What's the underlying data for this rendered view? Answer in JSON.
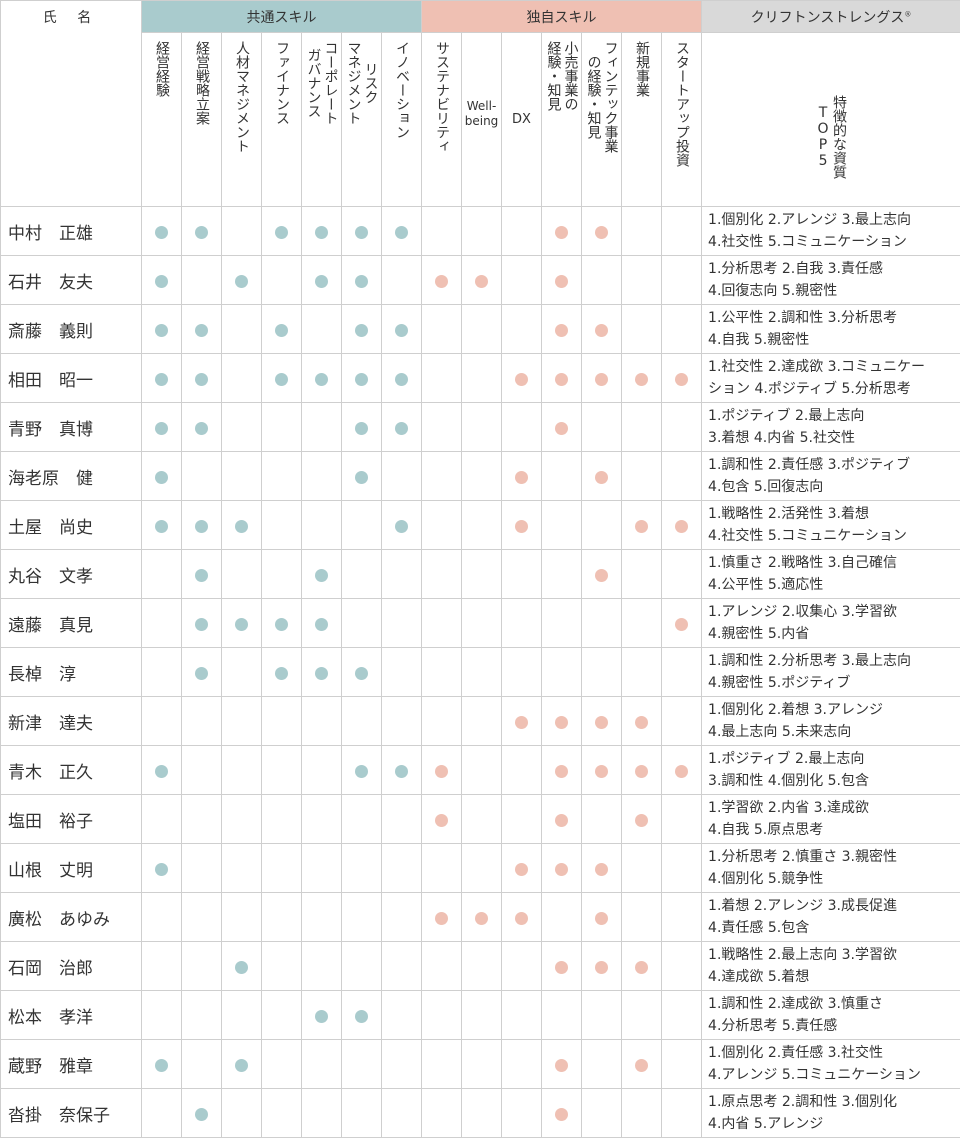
{
  "header": {
    "name_label": "氏 名",
    "common_label": "共通スキル",
    "unique_label": "独自スキル",
    "clifton_label": "クリフトンストレングス",
    "clifton_mark": "®",
    "top5_label": "特徴的な資質TOP5"
  },
  "colors": {
    "common": "#a9cbcd",
    "unique": "#efc0b3",
    "clifton": "#d9d9d9"
  },
  "common_skills": [
    "経営経験",
    "経営戦略立案",
    "人材マネジメント",
    "ファイナンス",
    "コーポレート\nガバナンス",
    "リスク\nマネジメント",
    "イノベーション"
  ],
  "unique_skills": [
    "サステナビリティ",
    "Well-\nbeing",
    "DX",
    "小売事業の\n経験・知見",
    "フィンテック事業\nの経験・知見",
    "新規事業",
    "スタートアップ投資"
  ],
  "members": [
    {
      "name": "中村　正雄",
      "common": [
        1,
        1,
        0,
        1,
        1,
        1,
        1
      ],
      "unique": [
        0,
        0,
        0,
        1,
        1,
        0,
        0
      ],
      "top5": "1.個別化 2.アレンジ 3.最上志向\n4.社交性 5.コミュニケーション"
    },
    {
      "name": "石井　友夫",
      "common": [
        1,
        0,
        1,
        0,
        1,
        1,
        0
      ],
      "unique": [
        1,
        1,
        0,
        1,
        0,
        0,
        0
      ],
      "top5": "1.分析思考 2.自我 3.責任感\n4.回復志向 5.親密性"
    },
    {
      "name": "斎藤　義則",
      "common": [
        1,
        1,
        0,
        1,
        0,
        1,
        1
      ],
      "unique": [
        0,
        0,
        0,
        1,
        1,
        0,
        0
      ],
      "top5": "1.公平性 2.調和性 3.分析思考\n4.自我 5.親密性"
    },
    {
      "name": "相田　昭一",
      "common": [
        1,
        1,
        0,
        1,
        1,
        1,
        1
      ],
      "unique": [
        0,
        0,
        1,
        1,
        1,
        1,
        1
      ],
      "top5": "1.社交性 2.達成欲 3.コミュニケー\nション 4.ポジティブ 5.分析思考"
    },
    {
      "name": "青野　真博",
      "common": [
        1,
        1,
        0,
        0,
        0,
        1,
        1
      ],
      "unique": [
        0,
        0,
        0,
        1,
        0,
        0,
        0
      ],
      "top5": "1.ポジティブ 2.最上志向\n3.着想 4.内省 5.社交性"
    },
    {
      "name": "海老原　健",
      "common": [
        1,
        0,
        0,
        0,
        0,
        1,
        0
      ],
      "unique": [
        0,
        0,
        1,
        0,
        1,
        0,
        0
      ],
      "top5": "1.調和性 2.責任感 3.ポジティブ\n4.包含 5.回復志向"
    },
    {
      "name": "土屋　尚史",
      "common": [
        1,
        1,
        1,
        0,
        0,
        0,
        1
      ],
      "unique": [
        0,
        0,
        1,
        0,
        0,
        1,
        1
      ],
      "top5": "1.戦略性 2.活発性 3.着想\n4.社交性 5.コミュニケーション"
    },
    {
      "name": "丸谷　文孝",
      "common": [
        0,
        1,
        0,
        0,
        1,
        0,
        0
      ],
      "unique": [
        0,
        0,
        0,
        0,
        1,
        0,
        0
      ],
      "top5": "1.慎重さ 2.戦略性 3.自己確信\n4.公平性 5.適応性"
    },
    {
      "name": "遠藤　真見",
      "common": [
        0,
        1,
        1,
        1,
        1,
        0,
        0
      ],
      "unique": [
        0,
        0,
        0,
        0,
        0,
        0,
        1
      ],
      "top5": "1.アレンジ 2.収集心 3.学習欲\n4.親密性 5.内省"
    },
    {
      "name": "長棹　淳",
      "common": [
        0,
        1,
        0,
        1,
        1,
        1,
        0
      ],
      "unique": [
        0,
        0,
        0,
        0,
        0,
        0,
        0
      ],
      "top5": "1.調和性 2.分析思考 3.最上志向\n4.親密性 5.ポジティブ"
    },
    {
      "name": "新津　達夫",
      "common": [
        0,
        0,
        0,
        0,
        0,
        0,
        0
      ],
      "unique": [
        0,
        0,
        1,
        1,
        1,
        1,
        0
      ],
      "top5": "1.個別化 2.着想 3.アレンジ\n4.最上志向 5.未来志向"
    },
    {
      "name": "青木　正久",
      "common": [
        1,
        0,
        0,
        0,
        0,
        1,
        1
      ],
      "unique": [
        1,
        0,
        0,
        1,
        1,
        1,
        1
      ],
      "top5": "1.ポジティブ 2.最上志向\n3.調和性 4.個別化 5.包含"
    },
    {
      "name": "塩田　裕子",
      "common": [
        0,
        0,
        0,
        0,
        0,
        0,
        0
      ],
      "unique": [
        1,
        0,
        0,
        1,
        0,
        1,
        0
      ],
      "top5": "1.学習欲 2.内省 3.達成欲\n4.自我 5.原点思考"
    },
    {
      "name": "山根　丈明",
      "common": [
        1,
        0,
        0,
        0,
        0,
        0,
        0
      ],
      "unique": [
        0,
        0,
        1,
        1,
        1,
        0,
        0
      ],
      "top5": "1.分析思考 2.慎重さ 3.親密性\n4.個別化 5.競争性"
    },
    {
      "name": "廣松　あゆみ",
      "common": [
        0,
        0,
        0,
        0,
        0,
        0,
        0
      ],
      "unique": [
        1,
        1,
        1,
        0,
        1,
        0,
        0
      ],
      "top5": "1.着想 2.アレンジ 3.成長促進\n4.責任感 5.包含"
    },
    {
      "name": "石岡　治郎",
      "common": [
        0,
        0,
        1,
        0,
        0,
        0,
        0
      ],
      "unique": [
        0,
        0,
        0,
        1,
        1,
        1,
        0
      ],
      "top5": "1.戦略性 2.最上志向 3.学習欲\n4.達成欲 5.着想"
    },
    {
      "name": "松本　孝洋",
      "common": [
        0,
        0,
        0,
        0,
        1,
        1,
        0
      ],
      "unique": [
        0,
        0,
        0,
        0,
        0,
        0,
        0
      ],
      "top5": "1.調和性 2.達成欲 3.慎重さ\n4.分析思考 5.責任感"
    },
    {
      "name": "蔵野　雅章",
      "common": [
        1,
        0,
        1,
        0,
        0,
        0,
        0
      ],
      "unique": [
        0,
        0,
        0,
        1,
        0,
        1,
        0
      ],
      "top5": "1.個別化 2.責任感 3.社交性\n4.アレンジ 5.コミュニケーション"
    },
    {
      "name": "沓掛　奈保子",
      "common": [
        0,
        1,
        0,
        0,
        0,
        0,
        0
      ],
      "unique": [
        0,
        0,
        0,
        1,
        0,
        0,
        0
      ],
      "top5": "1.原点思考 2.調和性 3.個別化\n4.内省 5.アレンジ"
    }
  ]
}
